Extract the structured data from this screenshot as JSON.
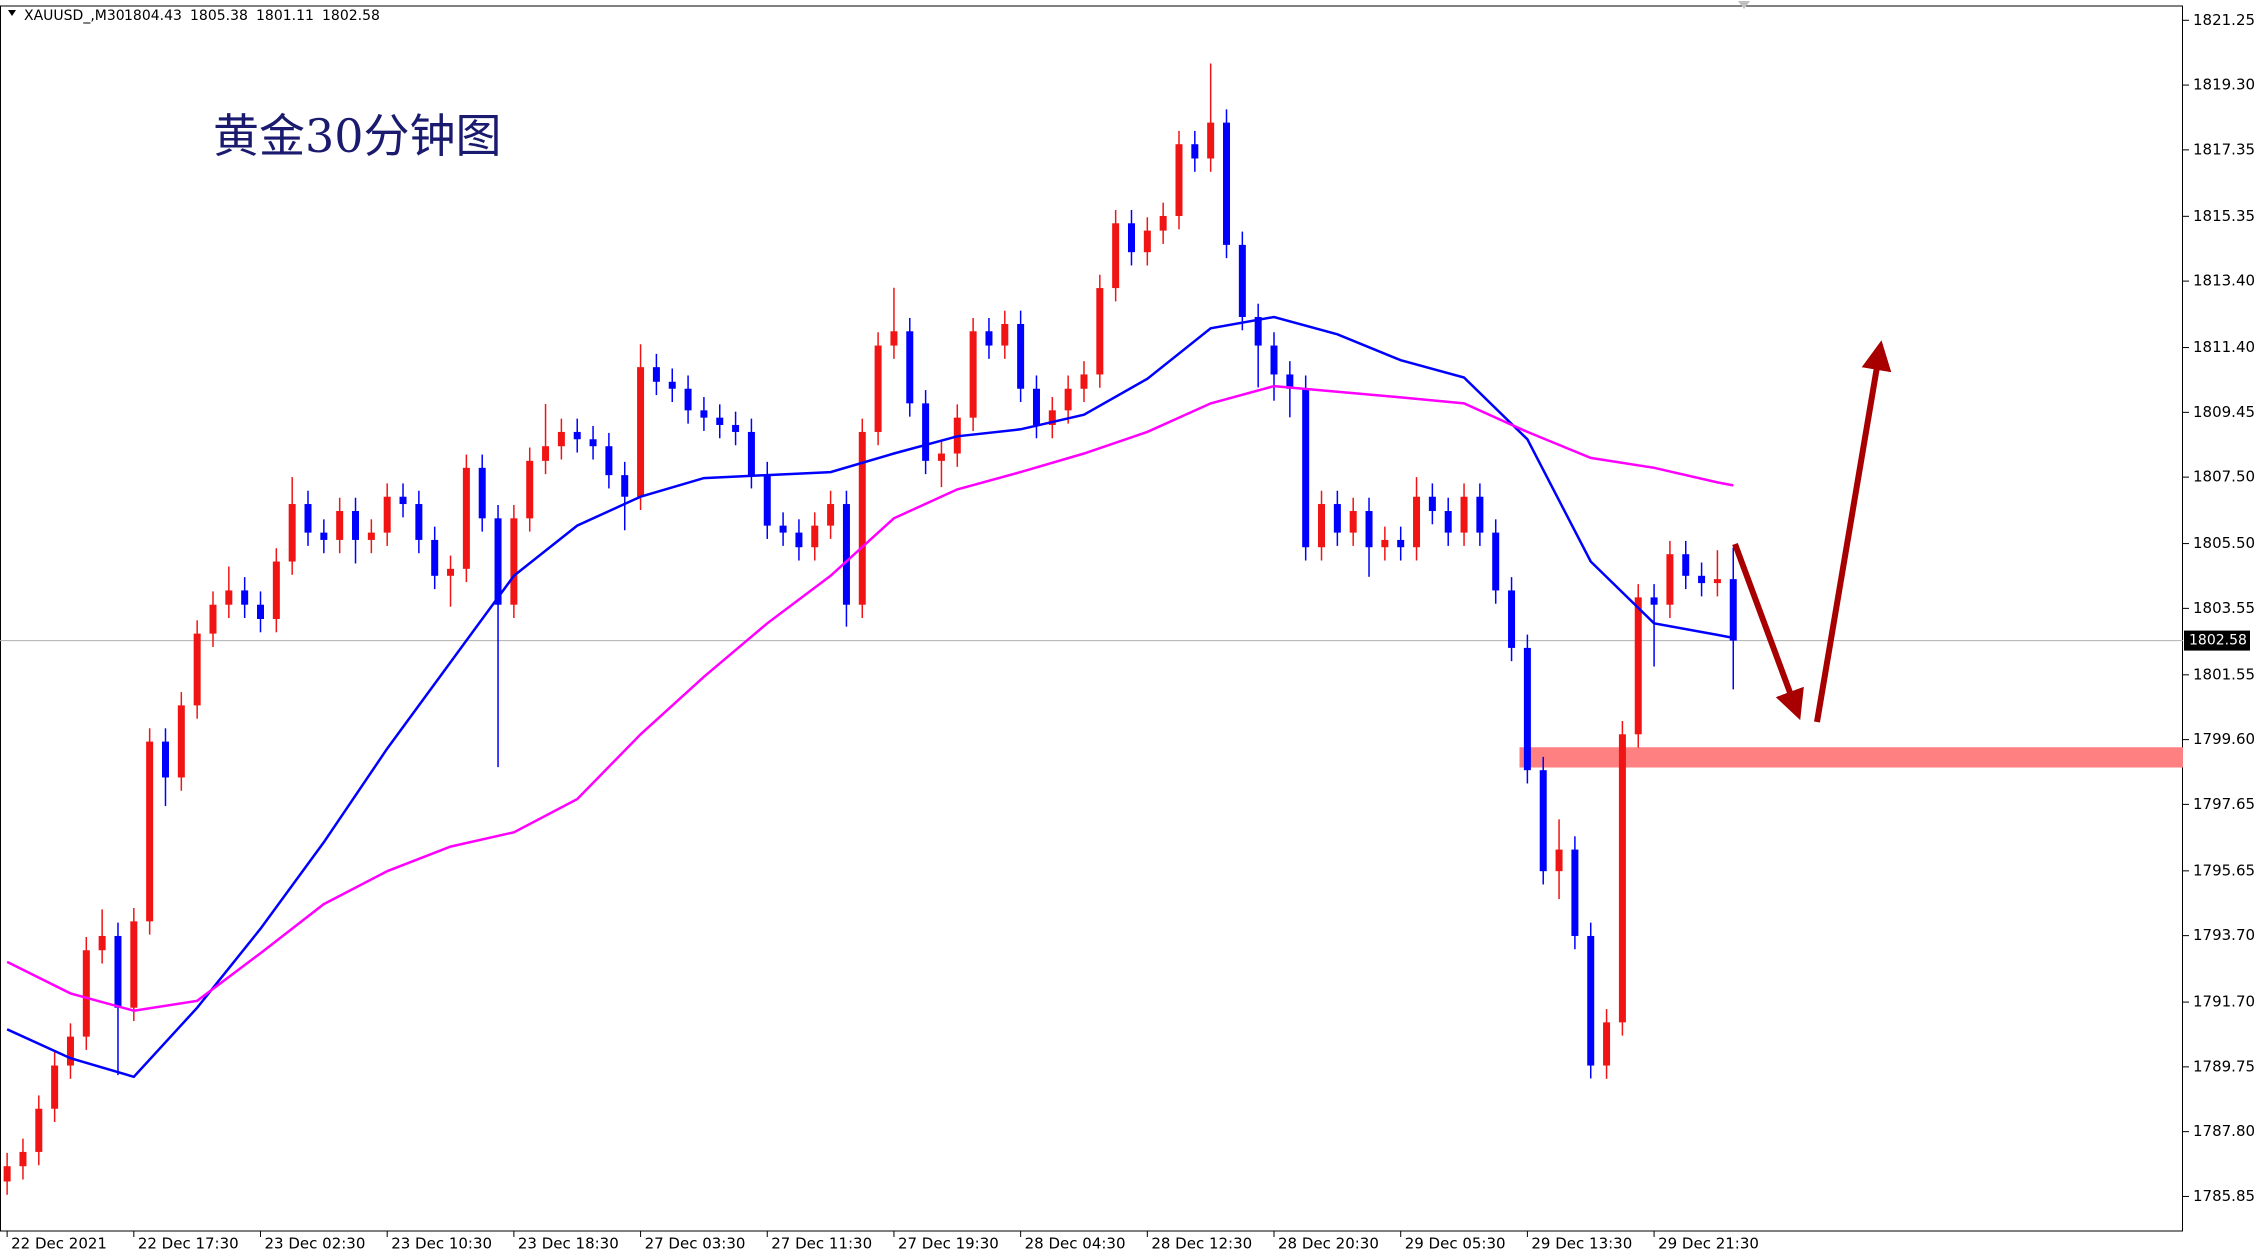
{
  "chart_data": {
    "type": "candlestick",
    "symbol": "XAUUSD_,M30",
    "annotation": "黄金30分钟图",
    "up_color": "#f01414",
    "down_color": "#0000ff",
    "open": [
      1786.3,
      1786.76,
      1787.19,
      1788.49,
      1789.79,
      1790.66,
      1793.26,
      1793.69,
      1791.53,
      1794.13,
      1799.54,
      1798.46,
      1800.63,
      1802.79,
      1803.66,
      1804.09,
      1803.66,
      1803.23,
      1804.96,
      1806.69,
      1805.83,
      1805.61,
      1806.48,
      1805.61,
      1805.83,
      1806.91,
      1806.69,
      1805.61,
      1804.53,
      1804.74,
      1807.78,
      1806.26,
      1803.66,
      1806.26,
      1807.99,
      1808.43,
      1808.86,
      1808.64,
      1808.43,
      1807.56,
      1806.91,
      1810.81,
      1810.37,
      1810.16,
      1809.51,
      1809.29,
      1809.07,
      1808.86,
      1807.56,
      1806.04,
      1805.83,
      1805.39,
      1806.04,
      1806.69,
      1803.66,
      1808.86,
      1811.46,
      1811.89,
      1809.72,
      1807.99,
      1808.21,
      1809.29,
      1811.89,
      1811.46,
      1812.11,
      1810.16,
      1809.07,
      1809.51,
      1810.16,
      1810.59,
      1813.19,
      1815.14,
      1814.27,
      1814.92,
      1815.36,
      1817.52,
      1817.09,
      1818.17,
      1814.49,
      1812.32,
      1811.46,
      1810.59,
      1810.16,
      1805.39,
      1806.69,
      1805.83,
      1806.48,
      1805.39,
      1805.61,
      1805.39,
      1806.91,
      1806.48,
      1805.83,
      1806.91,
      1805.83,
      1804.09,
      1802.36,
      1798.68,
      1795.64,
      1796.29,
      1793.69,
      1789.79,
      1791.09,
      1799.76,
      1803.88,
      1803.66,
      1805.18,
      1804.53,
      1804.31,
      1804.43
    ],
    "high": [
      1787.16,
      1787.59,
      1788.89,
      1790.19,
      1791.06,
      1793.66,
      1794.49,
      1794.09,
      1794.53,
      1799.94,
      1799.94,
      1801.03,
      1803.19,
      1804.06,
      1804.81,
      1804.49,
      1804.06,
      1805.36,
      1807.5,
      1807.09,
      1806.23,
      1806.88,
      1806.88,
      1806.23,
      1807.31,
      1807.31,
      1807.09,
      1806.01,
      1805.14,
      1808.18,
      1808.18,
      1806.66,
      1806.66,
      1808.39,
      1809.7,
      1809.26,
      1809.26,
      1809.04,
      1808.83,
      1807.96,
      1811.5,
      1811.21,
      1810.77,
      1810.56,
      1809.91,
      1809.69,
      1809.47,
      1809.26,
      1807.96,
      1806.44,
      1806.23,
      1806.44,
      1807.09,
      1807.09,
      1809.26,
      1811.86,
      1813.2,
      1812.29,
      1810.12,
      1808.61,
      1809.69,
      1812.29,
      1812.29,
      1812.51,
      1812.51,
      1810.56,
      1809.91,
      1810.56,
      1810.99,
      1813.59,
      1815.54,
      1815.54,
      1815.32,
      1815.76,
      1817.92,
      1817.92,
      1819.95,
      1818.57,
      1814.89,
      1812.72,
      1811.86,
      1810.99,
      1810.56,
      1807.09,
      1807.09,
      1806.88,
      1806.88,
      1806.01,
      1806.01,
      1807.5,
      1807.31,
      1806.88,
      1807.31,
      1807.31,
      1806.23,
      1804.49,
      1802.76,
      1799.08,
      1797.2,
      1796.69,
      1794.09,
      1791.49,
      1800.16,
      1804.28,
      1804.28,
      1805.58,
      1805.58,
      1804.93,
      1805.3,
      1805.38
    ],
    "low": [
      1785.9,
      1786.36,
      1786.79,
      1788.09,
      1789.39,
      1790.26,
      1792.86,
      1789.5,
      1791.13,
      1793.73,
      1797.6,
      1798.06,
      1800.23,
      1802.39,
      1803.26,
      1803.26,
      1802.83,
      1802.83,
      1804.56,
      1805.43,
      1805.21,
      1805.21,
      1804.9,
      1805.21,
      1805.43,
      1806.29,
      1805.21,
      1804.13,
      1803.6,
      1804.34,
      1805.86,
      1798.77,
      1803.26,
      1805.86,
      1807.59,
      1808.03,
      1808.24,
      1808.03,
      1807.16,
      1805.9,
      1806.51,
      1809.97,
      1809.76,
      1809.11,
      1808.89,
      1808.67,
      1808.46,
      1807.16,
      1805.64,
      1805.43,
      1804.99,
      1804.99,
      1805.64,
      1803.0,
      1803.26,
      1808.46,
      1811.06,
      1809.32,
      1807.59,
      1807.2,
      1807.81,
      1808.89,
      1811.06,
      1811.06,
      1809.76,
      1808.67,
      1808.67,
      1809.11,
      1809.76,
      1810.19,
      1812.79,
      1813.87,
      1813.87,
      1814.52,
      1814.96,
      1816.69,
      1816.69,
      1814.09,
      1811.92,
      1810.2,
      1809.8,
      1809.3,
      1804.99,
      1804.99,
      1805.43,
      1805.43,
      1804.5,
      1804.99,
      1804.99,
      1804.99,
      1806.08,
      1805.43,
      1805.43,
      1805.43,
      1803.69,
      1801.96,
      1798.28,
      1795.24,
      1794.8,
      1793.29,
      1789.4,
      1789.39,
      1790.69,
      1799.36,
      1801.8,
      1803.26,
      1804.13,
      1803.91,
      1803.91,
      1801.11
    ],
    "close": [
      1786.76,
      1787.19,
      1788.49,
      1789.79,
      1790.66,
      1793.26,
      1793.69,
      1791.53,
      1794.13,
      1799.54,
      1798.46,
      1800.63,
      1802.79,
      1803.66,
      1804.09,
      1803.66,
      1803.23,
      1804.96,
      1806.69,
      1805.83,
      1805.61,
      1806.48,
      1805.61,
      1805.83,
      1806.91,
      1806.69,
      1805.61,
      1804.53,
      1804.74,
      1807.78,
      1806.26,
      1803.66,
      1806.26,
      1807.99,
      1808.43,
      1808.86,
      1808.64,
      1808.43,
      1807.56,
      1806.91,
      1810.81,
      1810.37,
      1810.16,
      1809.51,
      1809.29,
      1809.07,
      1808.86,
      1807.56,
      1806.04,
      1805.83,
      1805.39,
      1806.04,
      1806.69,
      1803.66,
      1808.86,
      1811.46,
      1811.89,
      1809.72,
      1807.99,
      1808.21,
      1809.29,
      1811.89,
      1811.46,
      1812.11,
      1810.16,
      1809.07,
      1809.51,
      1810.16,
      1810.59,
      1813.19,
      1815.14,
      1814.27,
      1814.92,
      1815.36,
      1817.52,
      1817.09,
      1818.17,
      1814.49,
      1812.32,
      1811.46,
      1810.59,
      1810.16,
      1805.39,
      1806.69,
      1805.83,
      1806.48,
      1805.39,
      1805.61,
      1805.39,
      1806.91,
      1806.48,
      1805.83,
      1806.91,
      1805.83,
      1804.09,
      1802.36,
      1798.68,
      1795.64,
      1796.29,
      1793.69,
      1789.79,
      1791.09,
      1799.76,
      1803.88,
      1803.66,
      1805.18,
      1804.53,
      1804.31,
      1804.43,
      1802.58
    ],
    "moving_averages": [
      {
        "color": "#0000ff",
        "x": [
          0,
          4,
          8,
          12,
          16,
          20,
          24,
          28,
          32,
          36,
          40,
          44,
          48,
          52,
          56,
          60,
          64,
          68,
          72,
          76,
          80,
          84,
          88,
          92,
          96,
          100,
          104,
          108,
          109
        ],
        "values": [
          1790.88,
          1790.01,
          1789.45,
          1791.53,
          1793.91,
          1796.51,
          1799.33,
          1801.93,
          1804.53,
          1806.04,
          1806.91,
          1807.47,
          1807.56,
          1807.65,
          1808.21,
          1808.73,
          1808.94,
          1809.38,
          1810.46,
          1811.98,
          1812.32,
          1811.8,
          1811.02,
          1810.5,
          1808.64,
          1804.96,
          1803.1,
          1802.75,
          1802.66
        ]
      },
      {
        "color": "#ff00ff",
        "x": [
          0,
          4,
          8,
          12,
          16,
          20,
          24,
          28,
          32,
          36,
          40,
          44,
          48,
          52,
          56,
          60,
          64,
          68,
          72,
          76,
          80,
          84,
          88,
          92,
          96,
          100,
          104,
          108,
          109
        ],
        "values": [
          1792.91,
          1791.96,
          1791.44,
          1791.74,
          1793.17,
          1794.65,
          1795.64,
          1796.38,
          1796.81,
          1797.81,
          1799.76,
          1801.49,
          1803.1,
          1804.53,
          1806.26,
          1807.13,
          1807.65,
          1808.21,
          1808.86,
          1809.72,
          1810.24,
          1810.07,
          1809.9,
          1809.72,
          1808.86,
          1808.08,
          1807.78,
          1807.34,
          1807.25
        ]
      }
    ],
    "zone": {
      "low": 1798.76,
      "high": 1799.37,
      "start": 95.5,
      "color": "#ff8080"
    },
    "xlim": [
      -0.45,
      137.4
    ],
    "ylim": [
      1784.81,
      1821.68
    ],
    "xticks": [
      {
        "value": 0,
        "label": "22 Dec 2021"
      },
      {
        "value": 8,
        "label": "22 Dec 17:30"
      },
      {
        "value": 16,
        "label": "23 Dec 02:30"
      },
      {
        "value": 24,
        "label": "23 Dec 10:30"
      },
      {
        "value": 32,
        "label": "23 Dec 18:30"
      },
      {
        "value": 40,
        "label": "27 Dec 03:30"
      },
      {
        "value": 48,
        "label": "27 Dec 11:30"
      },
      {
        "value": 56,
        "label": "27 Dec 19:30"
      },
      {
        "value": 64,
        "label": "28 Dec 04:30"
      },
      {
        "value": 72,
        "label": "28 Dec 12:30"
      },
      {
        "value": 80,
        "label": "28 Dec 20:30"
      },
      {
        "value": 88,
        "label": "29 Dec 05:30"
      },
      {
        "value": 96,
        "label": "29 Dec 13:30"
      },
      {
        "value": 104,
        "label": "29 Dec 21:30"
      }
    ],
    "yticks": [
      1821.25,
      {
        "value": 1819.3,
        "label": "1819.30"
      },
      1817.35,
      1815.35,
      {
        "value": 1813.4,
        "label": "1813.40"
      },
      {
        "value": 1811.4,
        "label": "1811.40"
      },
      1809.45,
      {
        "value": 1807.5,
        "label": "1807.50"
      },
      {
        "value": 1805.5,
        "label": "1805.50"
      },
      1803.55,
      1801.55,
      {
        "value": 1799.6,
        "label": "1799.60"
      },
      1797.65,
      1795.65,
      {
        "value": 1793.7,
        "label": "1793.70"
      },
      {
        "value": 1791.7,
        "label": "1791.70"
      },
      1789.75,
      {
        "value": 1787.8,
        "label": "1787.80"
      },
      1785.85
    ]
  }
}
